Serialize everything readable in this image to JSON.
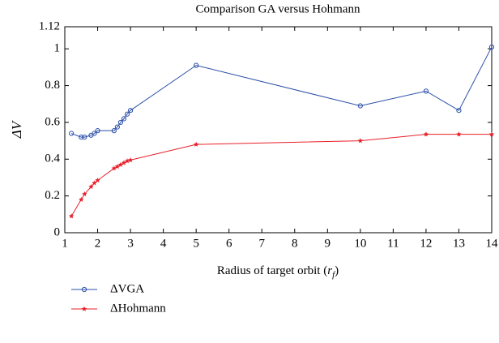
{
  "chart_data": {
    "type": "line",
    "title": "Comparison GA versus Hohmann",
    "y_label": "ΔV",
    "x_label": {
      "text": "Radius of target orbit (",
      "var": "r",
      "sub": "f",
      "close": ")"
    },
    "xlim": [
      1,
      14
    ],
    "xticks": [
      1,
      2,
      3,
      4,
      5,
      6,
      7,
      8,
      9,
      10,
      11,
      12,
      13,
      14
    ],
    "ylim": [
      0,
      1.12
    ],
    "yticks": [
      0,
      0.2,
      0.4,
      0.6,
      0.8,
      1,
      1.12
    ],
    "legend": "bottom-left",
    "series": [
      {
        "name": "ΔVGA",
        "color": "#2a4fa8",
        "marker": "circle",
        "x": [
          1.2,
          1.5,
          1.6,
          1.8,
          1.9,
          2,
          2.5,
          2.6,
          2.7,
          2.8,
          2.9,
          3,
          5,
          10,
          12,
          13,
          14
        ],
        "values": [
          0.54,
          0.52,
          0.52,
          0.53,
          0.54,
          0.555,
          0.555,
          0.575,
          0.6,
          0.62,
          0.645,
          0.665,
          0.91,
          0.69,
          0.77,
          0.665,
          1.01
        ]
      },
      {
        "name": "ΔHohmann",
        "color": "#e8202a",
        "marker": "star",
        "x": [
          1.2,
          1.5,
          1.6,
          1.8,
          1.9,
          2,
          2.5,
          2.6,
          2.7,
          2.8,
          2.9,
          3,
          5,
          10,
          12,
          13,
          14
        ],
        "values": [
          0.09,
          0.18,
          0.21,
          0.25,
          0.27,
          0.285,
          0.35,
          0.36,
          0.37,
          0.38,
          0.39,
          0.395,
          0.48,
          0.5,
          0.535,
          0.535,
          0.535
        ]
      }
    ]
  }
}
